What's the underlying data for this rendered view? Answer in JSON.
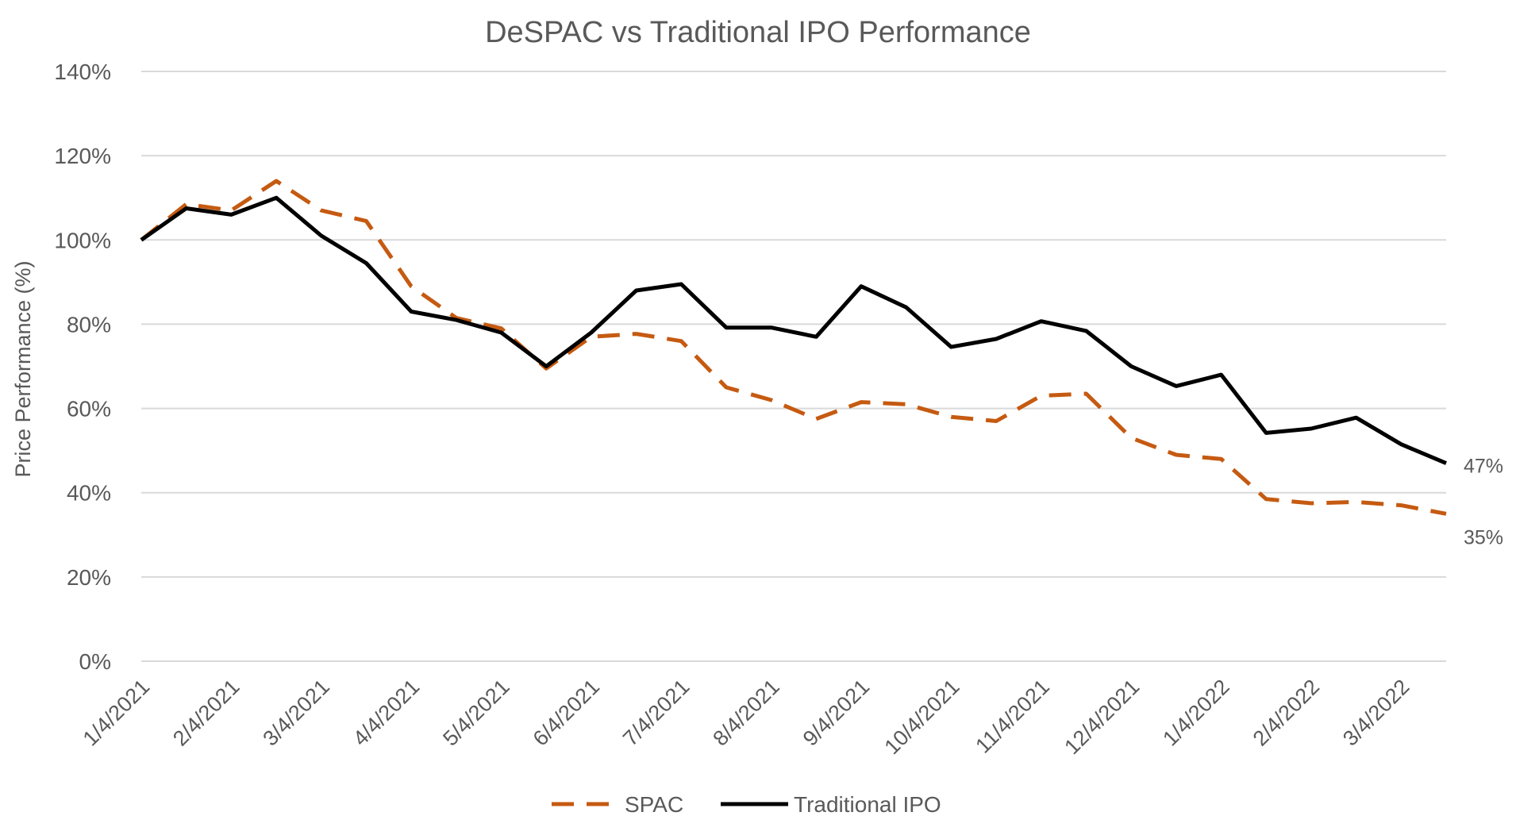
{
  "chart_data": {
    "type": "line",
    "title": "DeSPAC vs Traditional IPO Performance",
    "xlabel": "",
    "ylabel": "Price Performance (%)",
    "ylim": [
      0,
      140
    ],
    "yticks": [
      0,
      20,
      40,
      60,
      80,
      100,
      120,
      140
    ],
    "ytick_labels": [
      "0%",
      "20%",
      "40%",
      "60%",
      "80%",
      "100%",
      "120%",
      "140%"
    ],
    "grid": true,
    "legend_position": "bottom-center",
    "x_tick_labels": [
      "1/4/2021",
      "2/4/2021",
      "3/4/2021",
      "4/4/2021",
      "5/4/2021",
      "6/4/2021",
      "7/4/2021",
      "8/4/2021",
      "9/4/2021",
      "10/4/2021",
      "11/4/2021",
      "12/4/2021",
      "1/4/2022",
      "2/4/2022",
      "3/4/2022"
    ],
    "x_tick_every": 2,
    "series": [
      {
        "name": "SPAC",
        "color": "#c55a11",
        "style": "dashed",
        "values": [
          100,
          108.5,
          107,
          114,
          107,
          104.5,
          89,
          81.5,
          79,
          69.5,
          77,
          77.7,
          76,
          65,
          62,
          57.5,
          61.5,
          61,
          58,
          57,
          63,
          63.5,
          53,
          49,
          48,
          38.5,
          37.5,
          37.8,
          37,
          35
        ],
        "end_label": "35%"
      },
      {
        "name": "Traditional IPO",
        "color": "#000000",
        "style": "solid",
        "values": [
          100,
          107.5,
          106,
          110,
          101,
          94.5,
          83,
          81,
          78,
          70,
          78,
          88,
          89.5,
          79.2,
          79.2,
          77,
          89,
          84,
          74.6,
          76.5,
          80.7,
          78.4,
          70,
          65.3,
          68,
          54.2,
          55.2,
          57.8,
          51.5,
          47
        ],
        "end_label": "47%"
      }
    ]
  }
}
